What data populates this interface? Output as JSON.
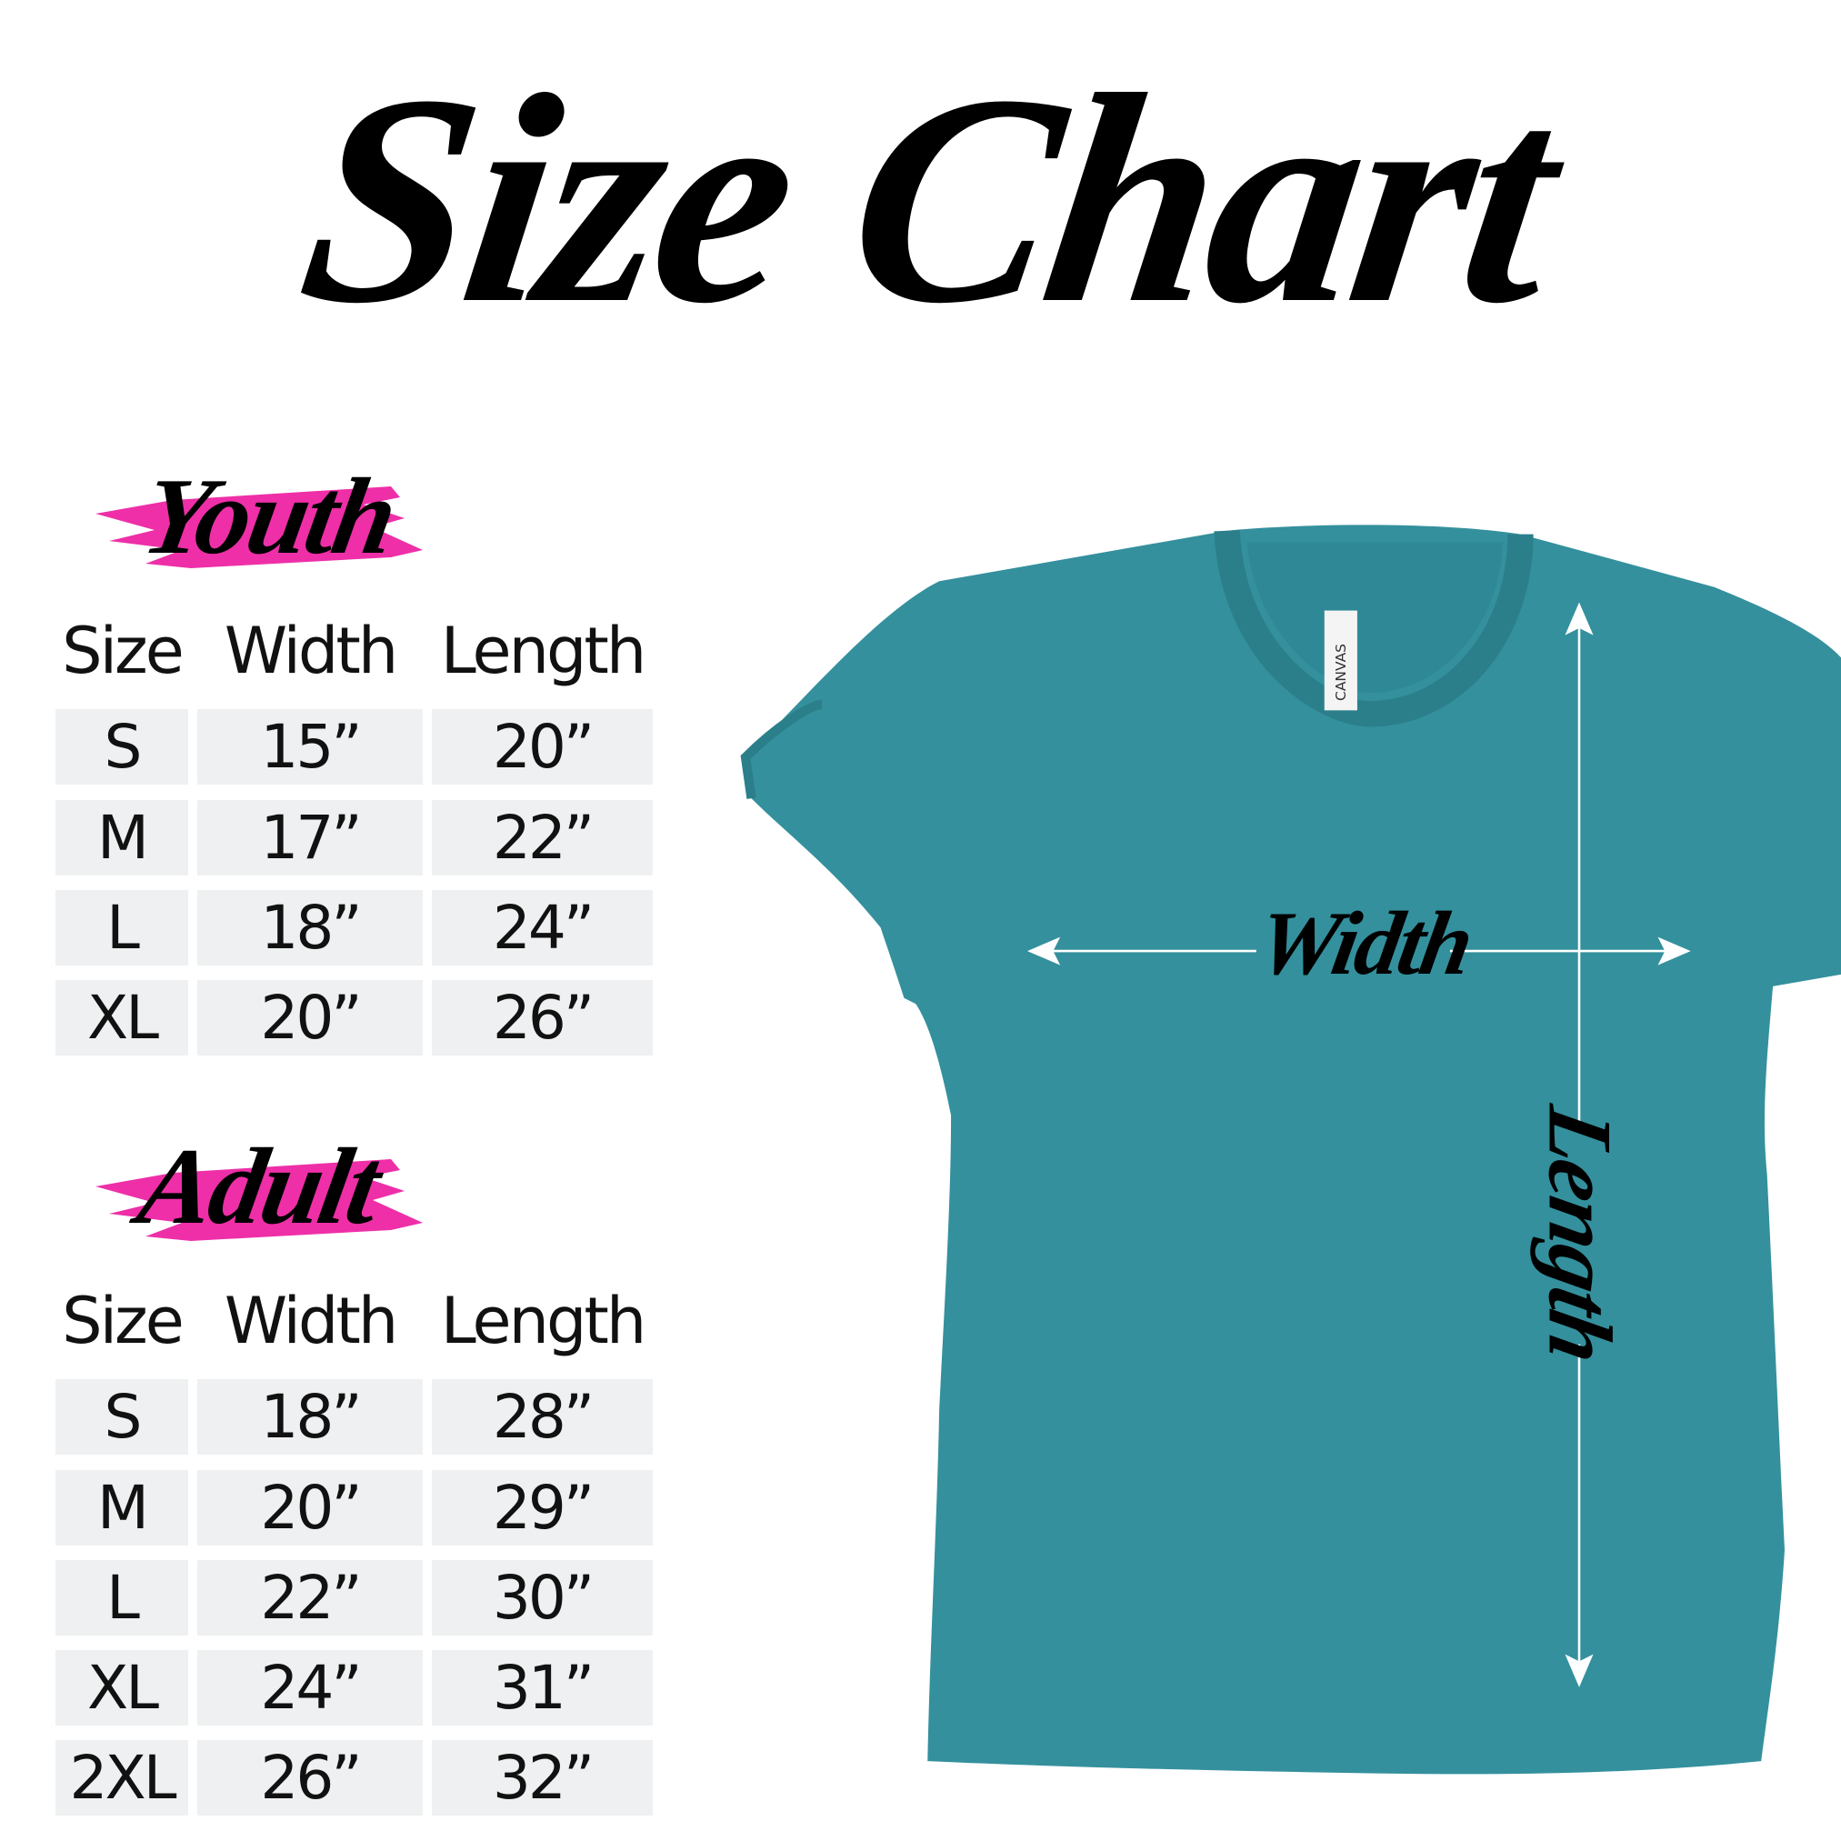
{
  "title": "Size Chart",
  "accent_color": "#ee2fa8",
  "shirt_color": "#34909d",
  "youth": {
    "label": "Youth",
    "headers": [
      "Size",
      "Width",
      "Length"
    ],
    "rows": [
      [
        "S",
        "15”",
        "20”"
      ],
      [
        "M",
        "17”",
        "22”"
      ],
      [
        "L",
        "18”",
        "24”"
      ],
      [
        "XL",
        "20”",
        "26”"
      ]
    ]
  },
  "adult": {
    "label": "Adult",
    "headers": [
      "Size",
      "Width",
      "Length"
    ],
    "rows": [
      [
        "S",
        "18”",
        "28”"
      ],
      [
        "M",
        "20”",
        "29”"
      ],
      [
        "L",
        "22”",
        "30”"
      ],
      [
        "XL",
        "24”",
        "31”"
      ],
      [
        "2XL",
        "26”",
        "32”"
      ]
    ]
  },
  "shirt": {
    "tag_text": "CANVAS",
    "width_label": "Width",
    "length_label": "Length"
  }
}
